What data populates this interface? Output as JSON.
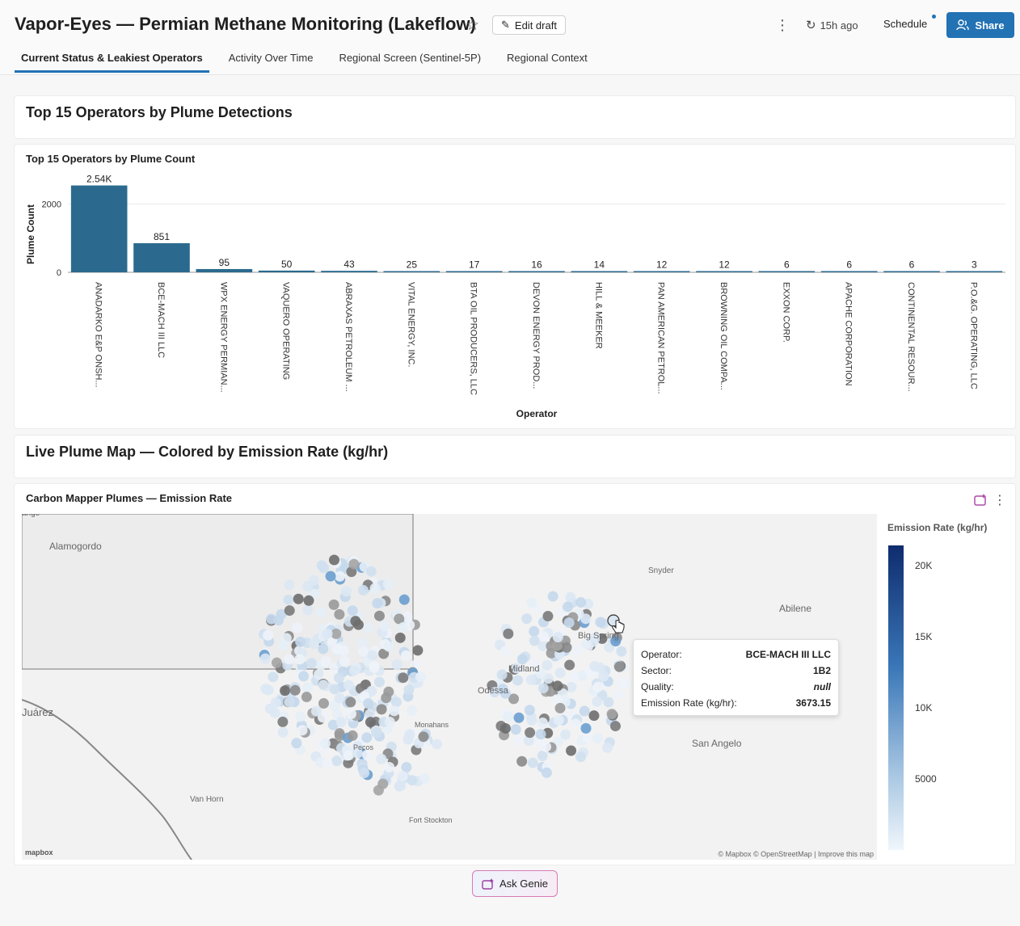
{
  "header": {
    "title": "Vapor-Eyes — Permian Methane Monitoring (Lakeflow)",
    "edit_label": "Edit draft",
    "refresh_label": "15h ago",
    "schedule_label": "Schedule",
    "share_label": "Share"
  },
  "tabs": [
    {
      "label": "Current Status & Leakiest Operators",
      "active": true
    },
    {
      "label": "Activity Over Time",
      "active": false
    },
    {
      "label": "Regional Screen (Sentinel-5P)",
      "active": false
    },
    {
      "label": "Regional Context",
      "active": false
    }
  ],
  "sections": {
    "operators_title": "Top 15 Operators by Plume Detections",
    "map_title": "Live Plume Map — Colored by Emission Rate (kg/hr)"
  },
  "bar_widget": {
    "title": "Top 15 Operators by Plume Count"
  },
  "map_widget": {
    "title": "Carbon Mapper Plumes — Emission Rate",
    "labels": [
      "Alamogordo",
      "Snyder",
      "Abilene",
      "Midland",
      "Odessa",
      "Big Spring",
      "Juárez",
      "Monahans",
      "Pecos",
      "San Angelo",
      "Van Horn",
      "Fort Stockton",
      "ange"
    ],
    "attribution": "© Mapbox © OpenStreetMap | Improve this map",
    "logo": "mapbox"
  },
  "tooltip": {
    "rows": [
      {
        "key": "Operator:",
        "value": "BCE-MACH III LLC"
      },
      {
        "key": "Sector:",
        "value": "1B2"
      },
      {
        "key": "Quality:",
        "value": "null"
      },
      {
        "key": "Emission Rate (kg/hr):",
        "value": "3673.15"
      }
    ]
  },
  "legend": {
    "title": "Emission Rate (kg/hr)",
    "ticks": [
      "20K",
      "15K",
      "10K",
      "5000"
    ],
    "color_low": "#f0f6fc",
    "color_high": "#0e2c6e"
  },
  "genie": {
    "label": "Ask Genie"
  },
  "colors": {
    "accent": "#2272b4",
    "bar": "#2b6a8e"
  },
  "chart_data": {
    "type": "bar",
    "title": "Top 15 Operators by Plume Count",
    "xlabel": "Operator",
    "ylabel": "Plume Count",
    "categories": [
      "ANADARKO E&P ONSH...",
      "BCE-MACH III LLC",
      "WPX ENERGY PERMIAN...",
      "VAQUERO OPERATING",
      "ABRAXAS PETROLEUM ...",
      "VITAL ENERGY, INC.",
      "BTA OIL PRODUCERS, LLC",
      "DEVON ENERGY PROD...",
      "HILL & MEEKER",
      "PAN AMERICAN PETROL...",
      "BROWNING OIL COMPA...",
      "EXXON CORP.",
      "APACHE CORPORATION",
      "CONTINENTAL RESOUR...",
      "P.O.&G. OPERATING, LLC"
    ],
    "values": [
      2540,
      851,
      95,
      50,
      43,
      25,
      17,
      16,
      14,
      12,
      12,
      6,
      6,
      6,
      3
    ],
    "value_labels": [
      "2.54K",
      "851",
      "95",
      "50",
      "43",
      "25",
      "17",
      "16",
      "14",
      "12",
      "12",
      "6",
      "6",
      "6",
      "3"
    ],
    "y_ticks": [
      "0",
      "2000"
    ],
    "y_tick_values": [
      0,
      2000
    ],
    "ylim": [
      0,
      2600
    ],
    "grid": true
  }
}
